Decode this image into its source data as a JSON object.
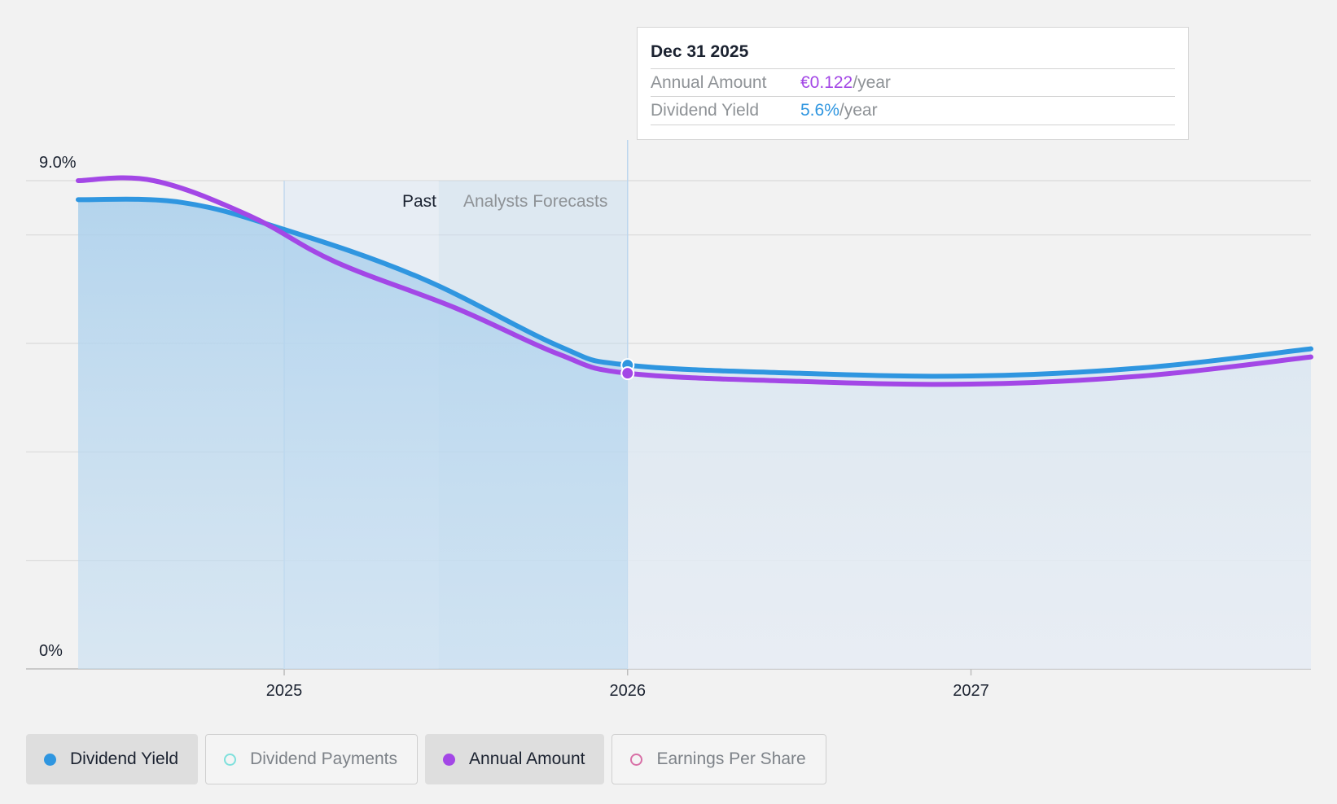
{
  "chart_data": {
    "type": "area",
    "x_axis": {
      "ticks": [
        "2025",
        "2026",
        "2027"
      ],
      "min": 2024.4,
      "max": 2027.99
    },
    "y_axis": {
      "ticks": [
        "9.0%",
        "0%"
      ],
      "min": 0,
      "max": 9.0,
      "unit": "%"
    },
    "regions": {
      "past_label": "Past",
      "forecast_label": "Analysts Forecasts"
    },
    "series": [
      {
        "name": "Dividend Yield",
        "color": "#2f96e0",
        "x": [
          2024.4,
          2024.7,
          2025.0,
          2025.4,
          2025.8,
          2026.0,
          2026.5,
          2027.0,
          2027.5,
          2027.99
        ],
        "values": [
          8.65,
          8.6,
          8.1,
          7.2,
          5.95,
          5.6,
          5.45,
          5.4,
          5.55,
          5.9
        ]
      },
      {
        "name": "Annual Amount",
        "color": "#a347e6",
        "x": [
          2024.4,
          2024.62,
          2024.9,
          2025.15,
          2025.5,
          2025.8,
          2026.0,
          2026.5,
          2027.0,
          2027.5,
          2027.99
        ],
        "values": [
          9.0,
          9.0,
          8.35,
          7.5,
          6.65,
          5.8,
          5.45,
          5.3,
          5.25,
          5.4,
          5.75
        ]
      }
    ]
  },
  "tooltip": {
    "date": "Dec 31 2025",
    "rows": [
      {
        "label": "Annual Amount",
        "value": "€0.122",
        "unit": "/year",
        "color": "#a347e6"
      },
      {
        "label": "Dividend Yield",
        "value": "5.6%",
        "unit": "/year",
        "color": "#2f96e0"
      }
    ]
  },
  "legend": [
    {
      "label": "Dividend Yield",
      "color": "#2f96e0",
      "active": true
    },
    {
      "label": "Dividend Payments",
      "color": "#7ee0dc",
      "active": false
    },
    {
      "label": "Annual Amount",
      "color": "#a347e6",
      "active": true
    },
    {
      "label": "Earnings Per Share",
      "color": "#d86fa6",
      "active": false
    }
  ]
}
